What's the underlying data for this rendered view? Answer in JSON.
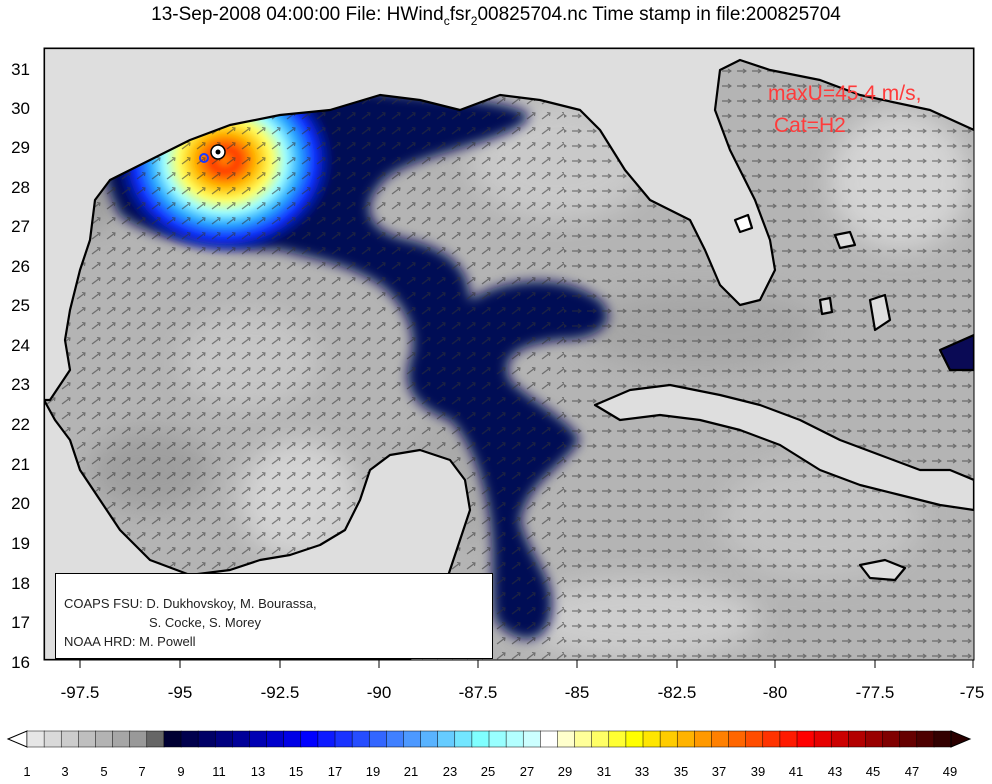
{
  "header": {
    "title_pre": "13-Sep-2008 04:00:00 File: HWind",
    "title_sub": "c",
    "title_mid": "fsr",
    "title_sub2": "2",
    "title_post": "00825704.nc Time stamp in file:200825704"
  },
  "annotation": {
    "maxU": "maxU=45.4 m/s,",
    "category": "Cat=H2",
    "color": "#ff3b3b"
  },
  "credits": {
    "line1": "COAPS FSU: D. Dukhovskoy, M. Bourassa,",
    "line2": "S. Cocke, S. Morey",
    "line3": "NOAA HRD:  M. Powell"
  },
  "map_axes": {
    "lon_labels": [
      "-97.5",
      "-95",
      "-92.5",
      "-90",
      "-87.5",
      "-85",
      "-82.5",
      "-80",
      "-77.5",
      "-75"
    ],
    "lat_labels": [
      "31",
      "30",
      "29",
      "28",
      "27",
      "26",
      "25",
      "24",
      "23",
      "22",
      "21",
      "20",
      "19",
      "18",
      "17",
      "16"
    ]
  },
  "colorbar": {
    "labels": [
      "1",
      "3",
      "5",
      "7",
      "9",
      "11",
      "13",
      "15",
      "17",
      "19",
      "21",
      "23",
      "25",
      "27",
      "29",
      "31",
      "33",
      "35",
      "37",
      "39",
      "41",
      "43",
      "45",
      "47",
      "49"
    ],
    "colors": [
      "#e6e6e6",
      "#d9d9d9",
      "#cccccc",
      "#bfbfbf",
      "#b3b3b3",
      "#a6a6a6",
      "#999999",
      "#666666",
      "#000033",
      "#00004d",
      "#000066",
      "#000080",
      "#000099",
      "#0000b3",
      "#0000cc",
      "#0000e6",
      "#0000ff",
      "#0d1aff",
      "#1a33ff",
      "#264dff",
      "#3366ff",
      "#4080ff",
      "#4d99ff",
      "#59b3ff",
      "#66ccff",
      "#73e6ff",
      "#80ffff",
      "#99ffff",
      "#b3ffff",
      "#ccffff",
      "#ffffff",
      "#ffffcc",
      "#ffff99",
      "#ffff66",
      "#ffff33",
      "#ffff00",
      "#ffe600",
      "#ffcc00",
      "#ffb300",
      "#ff9900",
      "#ff8000",
      "#ff6600",
      "#ff4d00",
      "#ff3300",
      "#ff1a00",
      "#ff0000",
      "#e60000",
      "#cc0000",
      "#b30000",
      "#990000",
      "#800000",
      "#660000",
      "#4d0000",
      "#330000"
    ],
    "low_color": "#ffffff",
    "high_color": "#2a0000"
  }
}
